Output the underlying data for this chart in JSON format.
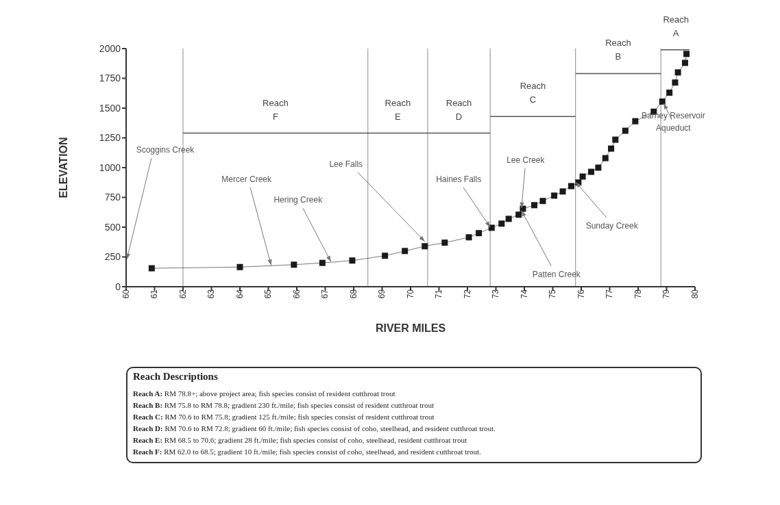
{
  "chart_data": {
    "type": "line",
    "xlabel": "RIVER MILES",
    "ylabel": "ELEVATION",
    "xlim": [
      60,
      80
    ],
    "xticks": [
      60,
      61,
      62,
      63,
      64,
      65,
      66,
      67,
      68,
      69,
      70,
      71,
      72,
      73,
      74,
      75,
      76,
      77,
      78,
      79,
      80
    ],
    "ylim": [
      0,
      2000
    ],
    "yticks": [
      0,
      250,
      500,
      750,
      1000,
      1250,
      1500,
      1750,
      2000
    ],
    "marker": "square",
    "line_style": "solid",
    "series": [
      {
        "color": "#1a1a1a",
        "x": [
          60.9,
          64.0,
          65.9,
          66.9,
          67.95,
          69.1,
          69.8,
          70.5,
          71.2,
          72.05,
          72.4,
          72.85,
          73.2,
          73.45,
          73.8,
          73.95,
          74.35,
          74.65,
          75.05,
          75.35,
          75.65,
          75.9,
          76.05,
          76.35,
          76.6,
          76.85,
          77.05,
          77.2,
          77.55,
          77.9,
          78.55,
          78.85,
          79.1,
          79.3,
          79.4,
          79.65,
          79.7
        ],
        "values": [
          155,
          165,
          185,
          200,
          220,
          260,
          300,
          340,
          370,
          415,
          450,
          495,
          530,
          570,
          605,
          655,
          685,
          720,
          765,
          800,
          845,
          875,
          925,
          965,
          1000,
          1080,
          1160,
          1235,
          1310,
          1390,
          1470,
          1555,
          1630,
          1715,
          1800,
          1880,
          1955
        ]
      },
      {
        "color": "#555555",
        "marker": "none",
        "x": [
          62.0,
          72.8
        ],
        "values": [
          1290,
          1290
        ]
      },
      {
        "color": "#555555",
        "marker": "none",
        "x": [
          72.8,
          75.8
        ],
        "values": [
          1430,
          1430
        ]
      },
      {
        "color": "#555555",
        "marker": "none",
        "x": [
          75.8,
          78.8
        ],
        "values": [
          1790,
          1790
        ]
      },
      {
        "color": "#555555",
        "marker": "none",
        "x": [
          78.8,
          79.8
        ],
        "values": [
          1990,
          1990
        ]
      }
    ],
    "ref_lines": [
      {
        "axis": "x",
        "value": 62.0
      },
      {
        "axis": "x",
        "value": 68.5
      },
      {
        "axis": "x",
        "value": 70.6
      },
      {
        "axis": "x",
        "value": 72.8
      },
      {
        "axis": "x",
        "value": 75.8
      },
      {
        "axis": "x",
        "value": 78.8
      }
    ],
    "annotations": [
      {
        "text": "Mercer Creek",
        "x": 65.1,
        "y": 180
      },
      {
        "text": "Hering Creek",
        "x": 67.2,
        "y": 210
      },
      {
        "text": "Lee Falls",
        "x": 70.5,
        "y": 380
      },
      {
        "text": "Haines Falls",
        "x": 72.8,
        "y": 500
      },
      {
        "text": "Lee Creek",
        "x": 73.9,
        "y": 660
      },
      {
        "text": "Patten Creek",
        "x": 73.9,
        "y": 640
      },
      {
        "text": "Sunday Creek",
        "x": 75.8,
        "y": 880
      },
      {
        "text": "Barney Reservoir\nAqueduct",
        "x": 78.9,
        "y": 1540
      },
      "Scoggins Creek",
      "Reach\nF",
      "Reach\nE",
      "Reach\nD",
      "Reach\nC",
      "Reach\nB",
      "Reach\nA",
      "Reach Descriptions",
      "Reach A: RM 78.8+; above project area;  fish species consist of resident cutthroat trout",
      "Reach B: RM 75.8 to RM 78.8; gradient 230 ft./mile; fish species consist of resident cutthroat trout",
      "Reach C: RM 70.6 to RM 75.8; gradient 125 ft./mile; fish species consist of resident cutthroat trout",
      "Reach D: RM 70.6 to RM 72.8; gradient 60 ft./mile; fish species consist of coho, steelhead, and resident cutthroat trout.",
      "Reach E: RM 68.5 to 70.6; gradient 28 ft./mile; fish species consist of coho, steelhead, resident cutthroat trout",
      "Reach F: RM 62.0 to 68.5; gradient 10 ft./mile; fish species consist of coho, steelhead, and resident cutthroat trout."
    ]
  }
}
